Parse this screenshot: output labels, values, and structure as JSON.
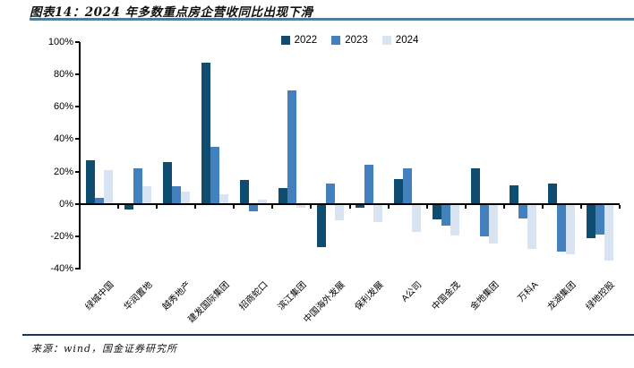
{
  "header": {
    "title": "图表14：2024 年多数重点房企营收同比出现下滑"
  },
  "footer": {
    "source": "来源：wind，国金证券研究所"
  },
  "chart_data": {
    "type": "bar",
    "title": "图表14：2024 年多数重点房企营收同比出现下滑",
    "categories": [
      "绿城中国",
      "华润置地",
      "越秀地产",
      "建发国际集团",
      "招商蛇口",
      "滨江集团",
      "中国海外发展",
      "保利发展",
      "A公司",
      "中国金茂",
      "金地集团",
      "万科A",
      "龙湖集团",
      "绿地控股"
    ],
    "series": [
      {
        "name": "2022",
        "color": "#0e4d6f",
        "values": [
          27,
          -3,
          26,
          87,
          15,
          10,
          -26,
          -2,
          15.5,
          -9,
          22,
          11.5,
          12.5,
          -20.5
        ]
      },
      {
        "name": "2023",
        "color": "#4381be",
        "values": [
          3.5,
          22,
          11,
          35,
          -4,
          70,
          12.5,
          24,
          22,
          -13,
          -19.5,
          -8.5,
          -29,
          -18.5
        ]
      },
      {
        "name": "2024",
        "color": "#d8e4f2",
        "values": [
          21,
          11,
          7.5,
          6,
          2.5,
          -2,
          -9.5,
          -10.5,
          -17,
          -19,
          -24,
          -27.5,
          -30.5,
          -34.5
        ]
      }
    ],
    "xlabel": "",
    "ylabel": "",
    "ylim": [
      -40,
      100
    ],
    "ytick_labels": [
      "100%",
      "80%",
      "60%",
      "40%",
      "20%",
      "0%",
      "-20%",
      "-40%"
    ],
    "ytick_values": [
      100,
      80,
      60,
      40,
      20,
      0,
      -20,
      -40
    ],
    "grid": false,
    "legend_position": "top-center",
    "unit": "percent"
  }
}
